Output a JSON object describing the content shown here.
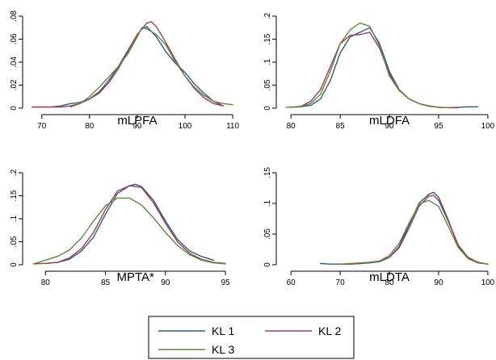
{
  "legend": [
    {
      "label": "KL 1",
      "color": "#2e5a88"
    },
    {
      "label": "KL 2",
      "color": "#a03a50"
    },
    {
      "label": "KL 3",
      "color": "#5a8a3a"
    }
  ],
  "chart_data": [
    {
      "type": "line",
      "xlabel": "mLPFA",
      "xlim": [
        67,
        111
      ],
      "ylim": [
        0,
        0.08
      ],
      "xticks": [
        70,
        80,
        90,
        100,
        110
      ],
      "yticks": [
        0,
        0.02,
        0.04,
        0.06,
        0.08
      ],
      "ytick_labels": [
        "0",
        ".02",
        ".04",
        ".06",
        ".08"
      ],
      "series": [
        {
          "name": "KL 1",
          "x": [
            68,
            72,
            74,
            76,
            78,
            80,
            82,
            84,
            86,
            88,
            90,
            91,
            92,
            94,
            96,
            98,
            100,
            102,
            104,
            106,
            108
          ],
          "y": [
            0.001,
            0.001,
            0.002,
            0.004,
            0.005,
            0.008,
            0.014,
            0.024,
            0.036,
            0.05,
            0.064,
            0.069,
            0.071,
            0.062,
            0.049,
            0.039,
            0.031,
            0.021,
            0.013,
            0.006,
            0.002
          ]
        },
        {
          "name": "KL 2",
          "x": [
            68,
            72,
            74,
            76,
            78,
            80,
            82,
            84,
            86,
            88,
            90,
            92,
            93,
            94,
            96,
            98,
            100,
            102,
            104,
            106,
            108
          ],
          "y": [
            0.001,
            0.001,
            0.001,
            0.002,
            0.004,
            0.008,
            0.013,
            0.022,
            0.034,
            0.049,
            0.064,
            0.074,
            0.075,
            0.071,
            0.057,
            0.042,
            0.028,
            0.017,
            0.009,
            0.004,
            0.002
          ]
        },
        {
          "name": "KL 3",
          "x": [
            76,
            78,
            80,
            82,
            84,
            86,
            88,
            90,
            91,
            92,
            94,
            96,
            98,
            100,
            102,
            104,
            106,
            108,
            110
          ],
          "y": [
            0.001,
            0.004,
            0.01,
            0.018,
            0.027,
            0.036,
            0.047,
            0.062,
            0.07,
            0.069,
            0.064,
            0.055,
            0.04,
            0.028,
            0.018,
            0.011,
            0.006,
            0.004,
            0.003
          ]
        }
      ]
    },
    {
      "type": "line",
      "xlabel": "mLDFA",
      "xlim": [
        79,
        100.5
      ],
      "ylim": [
        0,
        0.2
      ],
      "xticks": [
        80,
        85,
        90,
        95,
        100
      ],
      "yticks": [
        0,
        0.05,
        0.1,
        0.15,
        0.2
      ],
      "ytick_labels": [
        "0",
        ".05",
        ".1",
        ".15",
        ".2"
      ],
      "series": [
        {
          "name": "KL 1",
          "x": [
            80,
            81,
            82,
            83,
            84,
            85,
            86,
            87,
            87.5,
            88,
            89,
            90,
            91,
            92,
            93,
            94,
            95,
            96,
            97,
            98,
            99
          ],
          "y": [
            0.002,
            0.003,
            0.006,
            0.02,
            0.06,
            0.12,
            0.155,
            0.165,
            0.17,
            0.175,
            0.14,
            0.08,
            0.04,
            0.02,
            0.01,
            0.005,
            0.002,
            0.001,
            0.002,
            0.003,
            0.003
          ]
        },
        {
          "name": "KL 2",
          "x": [
            80,
            81,
            82,
            83,
            84,
            85,
            86,
            87,
            88,
            89,
            90,
            91,
            92,
            93,
            94,
            95,
            96,
            97
          ],
          "y": [
            0.002,
            0.004,
            0.015,
            0.04,
            0.09,
            0.14,
            0.158,
            0.16,
            0.165,
            0.13,
            0.075,
            0.04,
            0.02,
            0.01,
            0.005,
            0.002,
            0.001,
            0.001
          ]
        },
        {
          "name": "KL 3",
          "x": [
            79.5,
            81,
            82,
            83,
            84,
            85,
            86,
            87,
            88,
            89,
            90,
            91,
            92,
            93,
            94,
            95,
            96
          ],
          "y": [
            0.002,
            0.003,
            0.01,
            0.03,
            0.08,
            0.14,
            0.17,
            0.185,
            0.178,
            0.135,
            0.07,
            0.038,
            0.02,
            0.01,
            0.004,
            0.002,
            0.001
          ]
        }
      ]
    },
    {
      "type": "line",
      "xlabel": "MPTA*",
      "xlim": [
        78.5,
        96
      ],
      "ylim": [
        0,
        0.2
      ],
      "xticks": [
        80,
        85,
        90,
        95
      ],
      "yticks": [
        0,
        0.05,
        0.1,
        0.15,
        0.2
      ],
      "ytick_labels": [
        "0",
        ".05",
        ".1",
        ".15",
        ".2"
      ],
      "series": [
        {
          "name": "KL 1",
          "x": [
            80,
            81,
            82,
            83,
            84,
            85,
            86,
            87,
            87.5,
            88,
            89,
            90,
            91,
            92,
            93,
            94
          ],
          "y": [
            0.003,
            0.005,
            0.012,
            0.03,
            0.06,
            0.11,
            0.155,
            0.172,
            0.175,
            0.17,
            0.14,
            0.095,
            0.055,
            0.03,
            0.018,
            0.01
          ]
        },
        {
          "name": "KL 2",
          "x": [
            79,
            80,
            81,
            82,
            83,
            84,
            85,
            86,
            87,
            88,
            89,
            90,
            91,
            92,
            93,
            94,
            95
          ],
          "y": [
            0.002,
            0.003,
            0.005,
            0.015,
            0.035,
            0.07,
            0.12,
            0.16,
            0.172,
            0.168,
            0.135,
            0.09,
            0.05,
            0.025,
            0.012,
            0.005,
            0.003
          ]
        },
        {
          "name": "KL 3",
          "x": [
            79,
            80,
            81,
            82,
            83,
            84,
            85,
            86,
            87,
            88,
            89,
            90,
            91,
            92,
            93,
            94,
            95
          ],
          "y": [
            0.002,
            0.01,
            0.018,
            0.032,
            0.058,
            0.095,
            0.128,
            0.145,
            0.145,
            0.13,
            0.102,
            0.07,
            0.042,
            0.022,
            0.01,
            0.004,
            0.002
          ]
        }
      ]
    },
    {
      "type": "line",
      "xlabel": "mLDTA",
      "xlim": [
        58,
        101
      ],
      "ylim": [
        0,
        0.15
      ],
      "xticks": [
        60,
        70,
        80,
        90,
        100
      ],
      "yticks": [
        0,
        0.05,
        0.1,
        0.15
      ],
      "ytick_labels": [
        "0",
        ".05",
        ".1",
        ".15"
      ],
      "series": [
        {
          "name": "KL 1",
          "x": [
            66,
            68,
            70,
            72,
            74,
            76,
            78,
            80,
            82,
            84,
            86,
            88,
            89,
            90,
            92,
            94,
            96,
            98,
            100
          ],
          "y": [
            0.002,
            0.001,
            0.001,
            0.001,
            0.002,
            0.003,
            0.005,
            0.012,
            0.03,
            0.065,
            0.1,
            0.115,
            0.118,
            0.11,
            0.072,
            0.03,
            0.01,
            0.003,
            0.001
          ]
        },
        {
          "name": "KL 2",
          "x": [
            70,
            72,
            74,
            76,
            78,
            80,
            82,
            84,
            86,
            88,
            89,
            90,
            92,
            94,
            96,
            98,
            100
          ],
          "y": [
            0.001,
            0.001,
            0.002,
            0.004,
            0.006,
            0.012,
            0.028,
            0.06,
            0.095,
            0.112,
            0.113,
            0.105,
            0.07,
            0.032,
            0.012,
            0.004,
            0.001
          ]
        },
        {
          "name": "KL 3",
          "x": [
            70,
            72,
            74,
            76,
            78,
            80,
            82,
            84,
            86,
            87,
            88,
            90,
            92,
            94,
            96,
            98,
            100
          ],
          "y": [
            0.001,
            0.002,
            0.003,
            0.004,
            0.006,
            0.015,
            0.035,
            0.068,
            0.098,
            0.102,
            0.105,
            0.095,
            0.062,
            0.028,
            0.01,
            0.003,
            0.001
          ]
        }
      ]
    }
  ]
}
